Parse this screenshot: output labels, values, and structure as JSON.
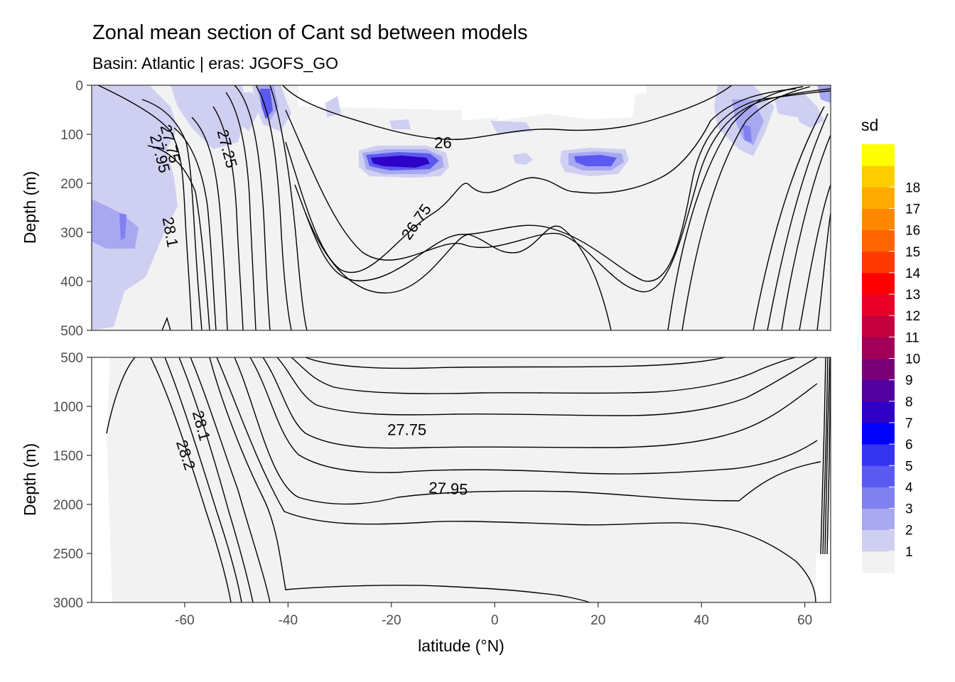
{
  "chart_data": {
    "type": "heatmap",
    "title": "Zonal mean section of Cant sd between models",
    "subtitle": "Basin: Atlantic | eras: JGOFS_GO",
    "xlabel": "latitude (°N)",
    "ylabel": "Depth (m)",
    "xlim": [
      -78,
      65
    ],
    "x_ticks": [
      "-60",
      "-40",
      "-20",
      "0",
      "20",
      "40",
      "60"
    ],
    "panels": [
      {
        "name": "upper",
        "ylim": [
          0,
          500
        ],
        "y_ticks": [
          "0",
          "100",
          "200",
          "300",
          "400",
          "500"
        ],
        "contour_labels": [
          {
            "text": "27.75",
            "lat": -63,
            "depth": 120,
            "angle": 75
          },
          {
            "text": "27.95",
            "lat": -65,
            "depth": 140,
            "angle": 75
          },
          {
            "text": "27.25",
            "lat": -52,
            "depth": 130,
            "angle": 75
          },
          {
            "text": "28.1",
            "lat": -63,
            "depth": 300,
            "angle": 80
          },
          {
            "text": "26",
            "lat": -10,
            "depth": 120,
            "angle": 0
          },
          {
            "text": "26.75",
            "lat": -15,
            "depth": 280,
            "angle": -55
          }
        ],
        "sd_patches": [
          {
            "lat": -44,
            "depth": 40,
            "sd": 4
          },
          {
            "lat": -18,
            "depth": 155,
            "sd": 6
          },
          {
            "lat": 19,
            "depth": 160,
            "sd": 5
          },
          {
            "lat": -72,
            "depth": 220,
            "sd": 2
          },
          {
            "lat": 48,
            "depth": 70,
            "sd": 3
          }
        ]
      },
      {
        "name": "lower",
        "ylim": [
          500,
          3000
        ],
        "y_ticks": [
          "500",
          "1000",
          "1500",
          "2000",
          "2500",
          "3000"
        ],
        "contour_labels": [
          {
            "text": "27.75",
            "lat": -17,
            "depth": 1250,
            "angle": 0
          },
          {
            "text": "27.95",
            "lat": -9,
            "depth": 1850,
            "angle": 3
          },
          {
            "text": "28.1",
            "lat": -57,
            "depth": 1200,
            "angle": 75
          },
          {
            "text": "28.2",
            "lat": -60,
            "depth": 1500,
            "angle": 72
          }
        ]
      }
    ],
    "legend": {
      "title": "sd",
      "placement": "right",
      "labels": [
        "1",
        "2",
        "3",
        "4",
        "5",
        "6",
        "7",
        "8",
        "9",
        "10",
        "11",
        "12",
        "13",
        "14",
        "15",
        "16",
        "17",
        "18"
      ],
      "colors": [
        "#f2f2f2",
        "#cfcff2",
        "#a8a8f0",
        "#8080f0",
        "#5a5af0",
        "#3333f0",
        "#0000ff",
        "#2e00c8",
        "#52009e",
        "#7a007a",
        "#a00058",
        "#c40040",
        "#e80028",
        "#ff0000",
        "#ff3a00",
        "#ff6400",
        "#ff8800",
        "#ffaa00",
        "#ffcc00",
        "#ffff00"
      ]
    }
  }
}
